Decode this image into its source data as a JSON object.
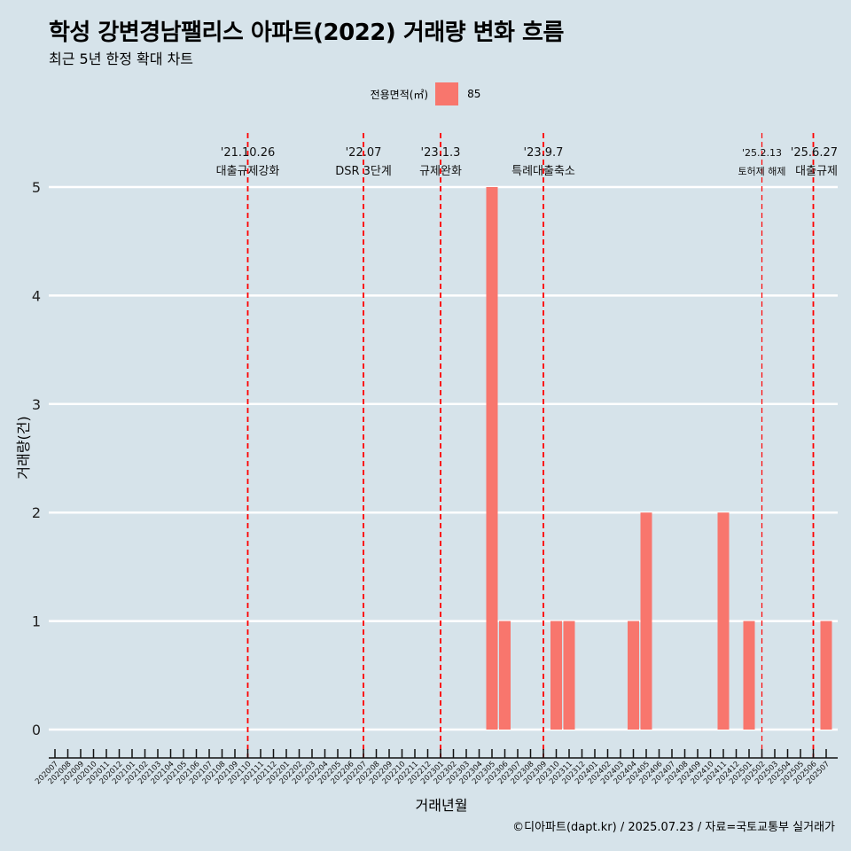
{
  "title": "학성 강변경남팰리스 아파트(2022) 거래량 변화 흐름",
  "subtitle": "최근 5년 한정 확대 차트",
  "legend": {
    "title": "전용면적(㎡)",
    "key_label": "85"
  },
  "caption": "©디아파트(dapt.kr) / 2025.07.23 / 자료=국토교통부 실거래가",
  "colors": {
    "background": "#d6e3ea",
    "bar": "#f8766d",
    "event_line": "#ff0000",
    "grid": "#ffffff"
  },
  "chart_data": {
    "type": "bar",
    "xlabel": "거래년월",
    "ylabel": "거래량(건)",
    "ylim": [
      0,
      5
    ],
    "y_ticks": [
      0,
      1,
      2,
      3,
      4,
      5
    ],
    "grid": "horizontal",
    "legend_position": "top",
    "categories": [
      "202007",
      "202008",
      "202009",
      "202010",
      "202011",
      "202012",
      "202101",
      "202102",
      "202103",
      "202104",
      "202105",
      "202106",
      "202107",
      "202108",
      "202109",
      "202110",
      "202111",
      "202112",
      "202201",
      "202202",
      "202203",
      "202204",
      "202205",
      "202206",
      "202207",
      "202208",
      "202209",
      "202210",
      "202211",
      "202212",
      "202301",
      "202302",
      "202303",
      "202304",
      "202305",
      "202306",
      "202307",
      "202308",
      "202309",
      "202310",
      "202311",
      "202312",
      "202401",
      "202402",
      "202403",
      "202404",
      "202405",
      "202406",
      "202407",
      "202408",
      "202409",
      "202410",
      "202411",
      "202412",
      "202501",
      "202502",
      "202503",
      "202504",
      "202505",
      "202506",
      "202507"
    ],
    "series": [
      {
        "name": "85",
        "color": "#f8766d",
        "values": [
          0,
          0,
          0,
          0,
          0,
          0,
          0,
          0,
          0,
          0,
          0,
          0,
          0,
          0,
          0,
          0,
          0,
          0,
          0,
          0,
          0,
          0,
          0,
          0,
          0,
          0,
          0,
          0,
          0,
          0,
          0,
          0,
          0,
          0,
          5,
          1,
          0,
          0,
          0,
          1,
          1,
          0,
          0,
          0,
          0,
          1,
          2,
          0,
          0,
          0,
          0,
          0,
          2,
          0,
          1,
          0,
          0,
          0,
          0,
          0,
          1
        ]
      }
    ],
    "events": [
      {
        "category": "202110",
        "date": "'21.10.26",
        "label": "대출규제강화"
      },
      {
        "category": "202207",
        "date": "'22.07",
        "label": "DSR 3단계"
      },
      {
        "category": "202301",
        "date": "'23.1.3",
        "label": "규제완화"
      },
      {
        "category": "202309",
        "date": "'23.9.7",
        "label": "특례대출축소"
      },
      {
        "category": "202502",
        "date": "'25.2.13",
        "label": "토허제 해제"
      },
      {
        "category": "202506",
        "date": "'25.6.27",
        "label": "대출규제"
      }
    ]
  }
}
